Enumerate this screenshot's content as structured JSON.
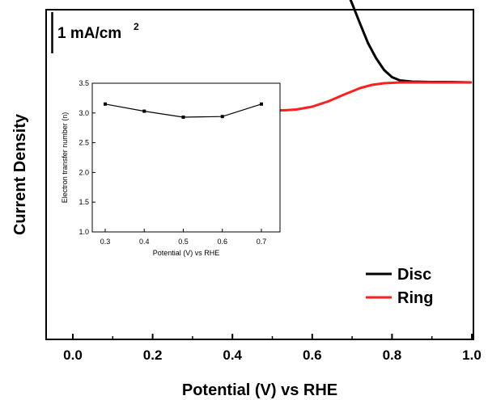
{
  "chart_data": [
    {
      "type": "line",
      "xlabel": "Potential (V) vs RHE",
      "ylabel": "Current Density",
      "xlim": [
        -0.1,
        1.0
      ],
      "x_ticks": [
        "0.0",
        "0.2",
        "0.4",
        "0.6",
        "0.8",
        "1.0"
      ],
      "y_tick_labels_shown": false,
      "scale_bar": {
        "text": "1 mA/cm",
        "superscript": "2"
      },
      "legend": {
        "position": "bottom-right"
      },
      "series": [
        {
          "name": "Disc",
          "color": "#000000",
          "x": [
            0.085,
            0.12,
            0.16,
            0.2,
            0.24,
            0.28,
            0.32,
            0.36,
            0.4,
            0.44,
            0.48,
            0.52,
            0.55,
            0.58,
            0.6,
            0.62,
            0.64,
            0.66,
            0.68,
            0.7,
            0.72,
            0.74,
            0.76,
            0.78,
            0.8,
            0.82,
            0.85,
            0.9,
            0.95,
            1.0
          ],
          "y": [
            -5.95,
            -5.87,
            -5.72,
            -5.5,
            -5.27,
            -5.05,
            -4.87,
            -4.72,
            -4.6,
            -4.5,
            -4.41,
            -4.31,
            -4.2,
            -4.04,
            -3.87,
            -3.64,
            -3.32,
            -2.9,
            -2.43,
            -1.95,
            -1.45,
            -0.97,
            -0.6,
            -0.31,
            -0.13,
            -0.05,
            -0.02,
            -0.01,
            -0.01,
            0.0
          ]
        },
        {
          "name": "Ring",
          "color": "#ff1f1f",
          "x": [
            0.085,
            0.15,
            0.2,
            0.25,
            0.3,
            0.35,
            0.4,
            0.45,
            0.5,
            0.53,
            0.56,
            0.6,
            0.64,
            0.68,
            0.72,
            0.75,
            0.78,
            0.82,
            0.88,
            0.94,
            1.0
          ],
          "y": [
            0.57,
            0.58,
            0.6,
            0.62,
            0.64,
            0.65,
            0.66,
            0.68,
            0.69,
            0.69,
            0.67,
            0.6,
            0.47,
            0.3,
            0.14,
            0.06,
            0.02,
            0.0,
            0.0,
            0.0,
            0.0
          ]
        }
      ]
    },
    {
      "type": "line",
      "xlabel": "Potential (V) vs RHE",
      "ylabel": "Electron transfer number (n)",
      "xlim": [
        0.25,
        0.75
      ],
      "ylim": [
        1.0,
        3.5
      ],
      "x_ticks": [
        "0.3",
        "0.4",
        "0.5",
        "0.6",
        "0.7"
      ],
      "y_ticks": [
        "1.0",
        "1.5",
        "2.0",
        "2.5",
        "3.0",
        "3.5"
      ],
      "series": [
        {
          "color": "#000000",
          "x": [
            0.3,
            0.4,
            0.5,
            0.6,
            0.7
          ],
          "y": [
            3.15,
            3.03,
            2.93,
            2.94,
            3.15
          ]
        }
      ]
    }
  ]
}
